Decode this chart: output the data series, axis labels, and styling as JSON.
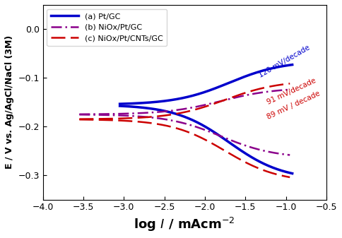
{
  "title": "",
  "xlabel": "log $I$ / mAcm$^{-2}$",
  "ylabel": "E / V vs. Ag/AgCl/NaCl (3M)",
  "xlim": [
    -4.0,
    -0.5
  ],
  "ylim": [
    -0.35,
    0.05
  ],
  "xticks": [
    -4.0,
    -3.5,
    -3.0,
    -2.5,
    -2.0,
    -1.5,
    -1.0,
    -0.5
  ],
  "yticks": [
    0.0,
    -0.1,
    -0.2,
    -0.3
  ],
  "color_a": "#0000cc",
  "color_b": "#8B008B",
  "color_c": "#cc0000",
  "label_a": "(a) Pt/GC",
  "label_b": "(b) NiOx/Pt/GC",
  "label_c": "(c) NiOx/Pt/CNTs/GC",
  "annot_a": "120 mV/decade",
  "annot_b": "91 mV/decade",
  "annot_c": "89 mV / decade"
}
